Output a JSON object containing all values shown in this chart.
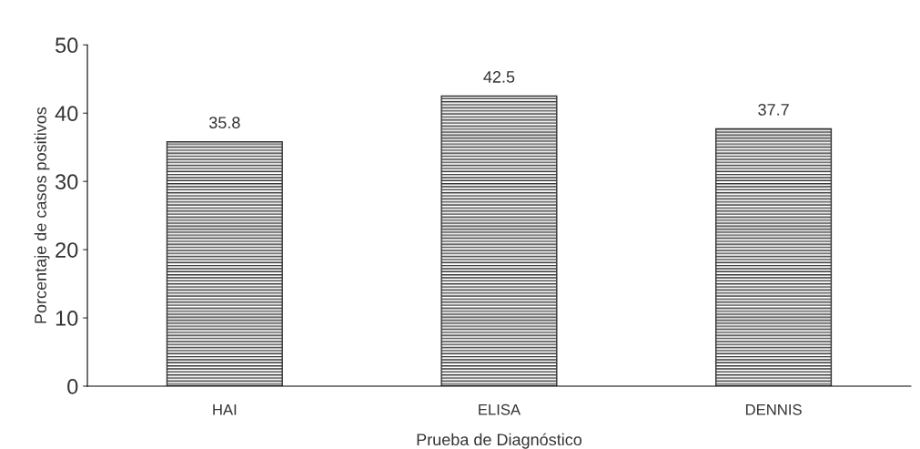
{
  "chart_data": {
    "type": "bar",
    "xlabel": "Prueba de Diagnóstico",
    "ylabel": "Porcentaje de casos positivos",
    "categories": [
      "HAI",
      "ELISA",
      "DENNIS"
    ],
    "values": [
      35.8,
      42.5,
      37.7
    ],
    "color": "#333333",
    "ylim": [
      0,
      50
    ],
    "yticks": [
      0,
      10,
      20,
      30,
      40,
      50
    ],
    "grid": false,
    "data_labels": true
  }
}
